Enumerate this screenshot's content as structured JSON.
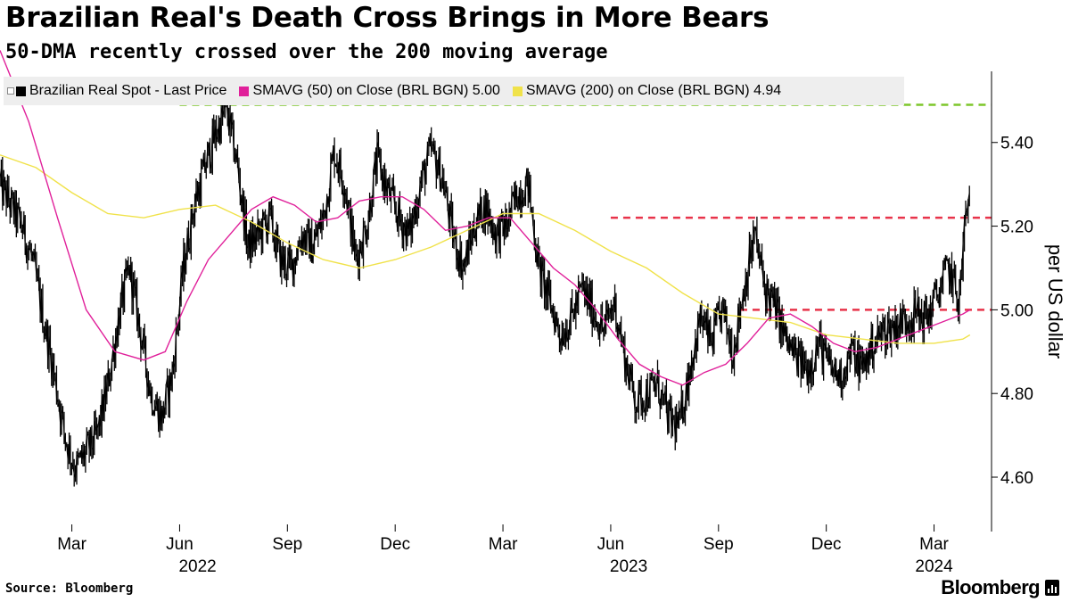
{
  "title": "Brazilian Real's Death Cross Brings in More Bears",
  "subtitle": "50-DMA recently crossed over the 200 moving average",
  "source": "Source: Bloomberg",
  "brand": "Bloomberg",
  "colors": {
    "price": "#000000",
    "sma50": "#e0209a",
    "sma200": "#f0e24a",
    "green_line": "#7dc62a",
    "red_line": "#e8334a",
    "legend_bg": "#eeeeee"
  },
  "legend": [
    {
      "label": "Brazilian Real Spot - Last Price",
      "color": "#000000"
    },
    {
      "label": "SMAVG (50)  on Close (BRL BGN) 5.00",
      "color": "#e0209a"
    },
    {
      "label": "SMAVG (200)  on Close (BRL BGN) 4.94",
      "color": "#f0e24a"
    }
  ],
  "chart_data": {
    "type": "line",
    "title": "Brazilian Real's Death Cross Brings in More Bears",
    "ylabel": "per US dollar",
    "ylim": [
      4.47,
      5.57
    ],
    "yticks": [
      4.6,
      4.8,
      5.0,
      5.2,
      5.4
    ],
    "ytick_labels": [
      "4.60",
      "4.80",
      "5.00",
      "5.20",
      "5.40"
    ],
    "x_months_range": [
      0,
      27.6
    ],
    "xticks": [
      {
        "m": 2,
        "label": "Mar"
      },
      {
        "m": 5,
        "label": "Jun"
      },
      {
        "m": 8,
        "label": "Sep"
      },
      {
        "m": 11,
        "label": "Dec"
      },
      {
        "m": 14,
        "label": "Mar"
      },
      {
        "m": 17,
        "label": "Jun"
      },
      {
        "m": 20,
        "label": "Sep"
      },
      {
        "m": 23,
        "label": "Dec"
      },
      {
        "m": 26,
        "label": "Mar"
      }
    ],
    "year_labels": [
      {
        "m": 5.5,
        "label": "2022"
      },
      {
        "m": 17.5,
        "label": "2023"
      },
      {
        "m": 26.0,
        "label": "2024"
      }
    ],
    "series": [
      {
        "name": "Brazilian Real Spot - Last Price",
        "x": [
          0.0,
          0.3,
          0.6,
          0.9,
          1.2,
          1.5,
          1.8,
          2.1,
          2.4,
          2.7,
          3.0,
          3.3,
          3.6,
          3.9,
          4.2,
          4.5,
          4.8,
          5.1,
          5.4,
          5.7,
          6.0,
          6.3,
          6.6,
          6.9,
          7.2,
          7.5,
          7.8,
          8.1,
          8.4,
          8.7,
          9.0,
          9.3,
          9.6,
          9.9,
          10.2,
          10.5,
          10.8,
          11.1,
          11.4,
          11.7,
          12.0,
          12.3,
          12.6,
          12.9,
          13.2,
          13.5,
          13.8,
          14.1,
          14.4,
          14.7,
          15.0,
          15.3,
          15.6,
          15.9,
          16.2,
          16.5,
          16.8,
          17.1,
          17.4,
          17.7,
          18.0,
          18.3,
          18.6,
          18.9,
          19.2,
          19.5,
          19.8,
          20.1,
          20.4,
          20.7,
          21.0,
          21.3,
          21.6,
          21.9,
          22.2,
          22.5,
          22.8,
          23.1,
          23.4,
          23.7,
          24.0,
          24.3,
          24.6,
          24.9,
          25.2,
          25.5,
          25.8,
          26.1,
          26.4,
          26.7,
          26.85,
          27.0
        ],
        "values": [
          5.3,
          5.25,
          5.2,
          5.12,
          4.98,
          4.85,
          4.7,
          4.62,
          4.66,
          4.7,
          4.82,
          4.98,
          5.1,
          4.95,
          4.8,
          4.74,
          4.85,
          5.1,
          5.25,
          5.34,
          5.42,
          5.48,
          5.35,
          5.15,
          5.18,
          5.22,
          5.12,
          5.1,
          5.18,
          5.15,
          5.22,
          5.38,
          5.3,
          5.12,
          5.2,
          5.36,
          5.28,
          5.22,
          5.18,
          5.3,
          5.38,
          5.32,
          5.18,
          5.1,
          5.2,
          5.25,
          5.18,
          5.2,
          5.28,
          5.3,
          5.1,
          5.02,
          4.94,
          4.98,
          5.05,
          5.0,
          4.95,
          5.02,
          4.88,
          4.78,
          4.8,
          4.82,
          4.74,
          4.72,
          4.86,
          4.98,
          4.92,
          5.0,
          4.9,
          5.05,
          5.18,
          5.05,
          5.0,
          4.92,
          4.88,
          4.86,
          4.92,
          4.86,
          4.84,
          4.9,
          4.86,
          4.92,
          4.95,
          4.96,
          4.98,
          4.99,
          4.98,
          5.04,
          5.1,
          5.02,
          5.2,
          5.28
        ]
      },
      {
        "name": "SMAVG (50)  on Close (BRL BGN) 5.00",
        "x": [
          0.0,
          0.8,
          1.6,
          2.4,
          3.2,
          4.0,
          4.6,
          5.2,
          5.8,
          6.4,
          7.0,
          7.6,
          8.2,
          8.8,
          9.4,
          10.0,
          10.6,
          11.2,
          11.8,
          12.4,
          13.0,
          13.6,
          14.2,
          14.8,
          15.4,
          16.0,
          16.6,
          17.2,
          17.8,
          18.4,
          19.0,
          19.6,
          20.2,
          20.8,
          21.4,
          22.0,
          22.6,
          23.2,
          23.8,
          24.4,
          25.0,
          25.6,
          26.2,
          26.8,
          27.0
        ],
        "values": [
          5.62,
          5.45,
          5.22,
          5.0,
          4.9,
          4.88,
          4.9,
          5.02,
          5.12,
          5.18,
          5.24,
          5.27,
          5.25,
          5.21,
          5.22,
          5.26,
          5.27,
          5.27,
          5.24,
          5.19,
          5.2,
          5.22,
          5.22,
          5.16,
          5.1,
          5.06,
          5.0,
          4.93,
          4.87,
          4.84,
          4.82,
          4.85,
          4.87,
          4.92,
          4.98,
          4.99,
          4.96,
          4.92,
          4.9,
          4.91,
          4.93,
          4.95,
          4.97,
          4.99,
          5.0
        ]
      },
      {
        "name": "SMAVG (200)  on Close (BRL BGN) 4.94",
        "x": [
          0.0,
          1.0,
          2.0,
          3.0,
          4.0,
          5.0,
          6.0,
          7.0,
          8.0,
          9.0,
          10.0,
          11.0,
          12.0,
          13.0,
          14.0,
          15.0,
          16.0,
          17.0,
          18.0,
          19.0,
          20.0,
          21.0,
          22.0,
          23.0,
          24.0,
          25.0,
          26.0,
          26.8,
          27.0
        ],
        "values": [
          5.37,
          5.34,
          5.28,
          5.23,
          5.22,
          5.24,
          5.25,
          5.21,
          5.16,
          5.12,
          5.1,
          5.12,
          5.15,
          5.19,
          5.23,
          5.23,
          5.19,
          5.14,
          5.1,
          5.04,
          4.99,
          4.98,
          4.97,
          4.94,
          4.93,
          4.92,
          4.92,
          4.93,
          4.94
        ]
      }
    ],
    "annotations": [
      {
        "type": "hline",
        "y": 5.49,
        "x0": 5.0,
        "x1": 27.6,
        "style": "dashed",
        "color": "green"
      },
      {
        "type": "hline",
        "y": 5.22,
        "x0": 17.0,
        "x1": 27.6,
        "style": "dashed",
        "color": "red"
      },
      {
        "type": "hline",
        "y": 5.0,
        "x0": 20.6,
        "x1": 27.6,
        "style": "dashed",
        "color": "red"
      }
    ]
  }
}
